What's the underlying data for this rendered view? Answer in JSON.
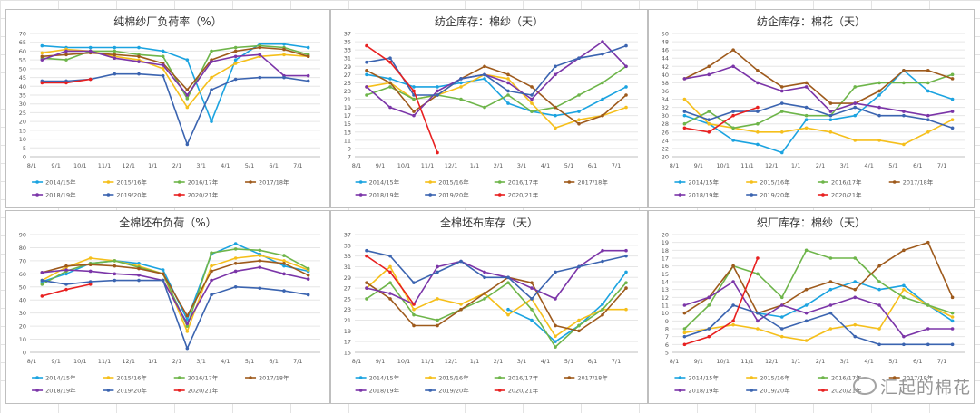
{
  "chart_data": [
    {
      "type": "line",
      "title": "纯棉纱厂负荷率（%）",
      "categories": [
        "8/1",
        "9/1",
        "10/1",
        "11/1",
        "12/1",
        "1/1",
        "2/1",
        "3/1",
        "4/1",
        "5/1",
        "6/1",
        "7/1"
      ],
      "yticks": [
        0,
        5,
        10,
        15,
        20,
        25,
        30,
        35,
        40,
        45,
        50,
        55,
        60,
        65,
        70
      ],
      "ylim": [
        0,
        70
      ],
      "legend_rows": [
        [
          "2014/15年",
          "2015/16年",
          "2016/17年",
          "2017/18年"
        ],
        [
          "2018/19年",
          "2019/20年",
          "2020/21年"
        ]
      ],
      "series": [
        {
          "name": "2014/15年",
          "color": "#1ba3e0",
          "values": [
            63,
            62,
            62,
            62,
            62,
            60,
            55,
            20,
            55,
            64,
            64,
            62
          ]
        },
        {
          "name": "2015/16年",
          "color": "#f5bf1b",
          "values": [
            59,
            61,
            60,
            57,
            55,
            50,
            28,
            45,
            53,
            57,
            58,
            57
          ]
        },
        {
          "name": "2016/17年",
          "color": "#6eb54a",
          "values": [
            56,
            55,
            60,
            60,
            58,
            57,
            33,
            60,
            62,
            63,
            62,
            58
          ]
        },
        {
          "name": "2017/18年",
          "color": "#9e5a1c",
          "values": [
            57,
            58,
            59,
            58,
            57,
            53,
            38,
            55,
            60,
            62,
            61,
            57
          ]
        },
        {
          "name": "2018/19年",
          "color": "#7b35a8",
          "values": [
            55,
            60,
            60,
            56,
            54,
            52,
            35,
            54,
            57,
            58,
            46,
            46
          ]
        },
        {
          "name": "2019/20年",
          "color": "#3b64b0",
          "values": [
            43,
            43,
            44,
            47,
            47,
            46,
            7,
            38,
            44,
            45,
            45,
            43
          ]
        },
        {
          "name": "2020/21年",
          "color": "#e82020",
          "values": [
            42,
            42,
            44,
            null,
            null,
            null,
            null,
            null,
            null,
            null,
            null,
            null
          ]
        }
      ]
    },
    {
      "type": "line",
      "title": "纺企库存：棉纱（天）",
      "categories": [
        "8/1",
        "9/1",
        "10/1",
        "11/1",
        "12/1",
        "1/1",
        "2/1",
        "3/1",
        "4/1",
        "5/1",
        "6/1",
        "7/1"
      ],
      "yticks": [
        7,
        9,
        11,
        13,
        15,
        17,
        19,
        21,
        23,
        25,
        27,
        29,
        31,
        33,
        35,
        37
      ],
      "ylim": [
        7,
        37
      ],
      "legend_rows": [
        [
          "2014/15年",
          "2015/16年",
          "2016/17年",
          "2017/18年"
        ],
        [
          "2018/19年",
          "2019/20年",
          "2020/21年"
        ]
      ],
      "series": [
        {
          "name": "2014/15年",
          "color": "#1ba3e0",
          "values": [
            27,
            26,
            24,
            24,
            25,
            26,
            20,
            18,
            17,
            18,
            21,
            24
          ]
        },
        {
          "name": "2015/16年",
          "color": "#f5bf1b",
          "values": [
            24,
            25,
            21,
            22,
            24,
            27,
            26,
            20,
            14,
            16,
            17,
            19
          ]
        },
        {
          "name": "2016/17年",
          "color": "#6eb54a",
          "values": [
            22,
            24,
            21,
            22,
            21,
            19,
            22,
            18,
            19,
            22,
            25,
            29
          ]
        },
        {
          "name": "2017/18年",
          "color": "#9e5a1c",
          "values": [
            28,
            25,
            18,
            22,
            26,
            29,
            27,
            24,
            19,
            15,
            17,
            22
          ]
        },
        {
          "name": "2018/19年",
          "color": "#7b35a8",
          "values": [
            24,
            19,
            17,
            23,
            26,
            27,
            25,
            21,
            27,
            31,
            35,
            29
          ]
        },
        {
          "name": "2019/20年",
          "color": "#3b64b0",
          "values": [
            30,
            31,
            22,
            22,
            26,
            27,
            23,
            22,
            29,
            31,
            32,
            34
          ]
        },
        {
          "name": "2020/21年",
          "color": "#e82020",
          "values": [
            34,
            30,
            23,
            8,
            null,
            null,
            null,
            null,
            null,
            null,
            null,
            null
          ]
        }
      ]
    },
    {
      "type": "line",
      "title": "纺企库存：棉花（天）",
      "categories": [
        "8/1",
        "9/1",
        "10/1",
        "11/1",
        "12/1",
        "1/1",
        "2/1",
        "3/1",
        "4/1",
        "5/1",
        "6/1",
        "7/1"
      ],
      "yticks": [
        20,
        22,
        24,
        26,
        28,
        30,
        32,
        34,
        36,
        38,
        40,
        42,
        44,
        46,
        48,
        50
      ],
      "ylim": [
        20,
        50
      ],
      "legend_rows": [
        [
          "2014/15年",
          "2015/16年",
          "2016/17年",
          "2017/18年"
        ],
        [
          "2018/19年",
          "2019/20年",
          "2020/21年"
        ]
      ],
      "series": [
        {
          "name": "2014/15年",
          "color": "#1ba3e0",
          "values": [
            30,
            28,
            24,
            23,
            21,
            29,
            29,
            30,
            35,
            41,
            36,
            34
          ]
        },
        {
          "name": "2015/16年",
          "color": "#f5bf1b",
          "values": [
            34,
            28,
            27,
            26,
            26,
            27,
            26,
            24,
            24,
            23,
            26,
            29
          ]
        },
        {
          "name": "2016/17年",
          "color": "#6eb54a",
          "values": [
            28,
            31,
            27,
            28,
            31,
            30,
            30,
            37,
            38,
            38,
            38,
            40
          ]
        },
        {
          "name": "2017/18年",
          "color": "#9e5a1c",
          "values": [
            39,
            42,
            46,
            41,
            37,
            38,
            33,
            33,
            36,
            41,
            41,
            39
          ]
        },
        {
          "name": "2018/19年",
          "color": "#7b35a8",
          "values": [
            39,
            40,
            42,
            38,
            36,
            37,
            31,
            33,
            32,
            31,
            30,
            31
          ]
        },
        {
          "name": "2019/20年",
          "color": "#3b64b0",
          "values": [
            31,
            29,
            31,
            31,
            33,
            32,
            30,
            32,
            30,
            30,
            29,
            27
          ]
        },
        {
          "name": "2020/21年",
          "color": "#e82020",
          "values": [
            27,
            26,
            30,
            32,
            null,
            null,
            null,
            null,
            null,
            null,
            null,
            null
          ]
        }
      ]
    },
    {
      "type": "line",
      "title": "全棉坯布负荷（%）",
      "categories": [
        "8/1",
        "9/1",
        "10/1",
        "11/1",
        "12/1",
        "1/1",
        "2/1",
        "3/1",
        "4/1",
        "5/1",
        "6/1",
        "7/1"
      ],
      "yticks": [
        0,
        10,
        20,
        30,
        40,
        50,
        60,
        70,
        80,
        90
      ],
      "ylim": [
        0,
        90
      ],
      "legend_rows": [
        [
          "2014/15年",
          "2015/16年",
          "2016/17年",
          "2017/18年"
        ],
        [
          "2018/19年",
          "2019/20年",
          "2020/21年"
        ]
      ],
      "series": [
        {
          "name": "2014/15年",
          "color": "#1ba3e0",
          "values": [
            54,
            60,
            68,
            70,
            68,
            63,
            25,
            75,
            83,
            75,
            66,
            62
          ]
        },
        {
          "name": "2015/16年",
          "color": "#f5bf1b",
          "values": [
            55,
            65,
            72,
            70,
            66,
            60,
            16,
            66,
            72,
            74,
            70,
            63
          ]
        },
        {
          "name": "2016/17年",
          "color": "#6eb54a",
          "values": [
            52,
            62,
            68,
            70,
            65,
            60,
            20,
            76,
            79,
            78,
            74,
            64
          ]
        },
        {
          "name": "2017/18年",
          "color": "#9e5a1c",
          "values": [
            61,
            66,
            67,
            66,
            64,
            60,
            28,
            62,
            68,
            70,
            68,
            59
          ]
        },
        {
          "name": "2018/19年",
          "color": "#7b35a8",
          "values": [
            61,
            63,
            62,
            60,
            59,
            55,
            22,
            55,
            62,
            65,
            60,
            56
          ]
        },
        {
          "name": "2019/20年",
          "color": "#3b64b0",
          "values": [
            55,
            52,
            54,
            55,
            55,
            55,
            3,
            44,
            50,
            49,
            47,
            44
          ]
        },
        {
          "name": "2020/21年",
          "color": "#e82020",
          "values": [
            43,
            48,
            52,
            null,
            null,
            null,
            null,
            null,
            null,
            null,
            null,
            null
          ]
        }
      ]
    },
    {
      "type": "line",
      "title": "全棉坯布库存（天）",
      "categories": [
        "8/1",
        "9/1",
        "10/1",
        "11/1",
        "12/1",
        "1/1",
        "2/1",
        "3/1",
        "4/1",
        "5/1",
        "6/1",
        "7/1"
      ],
      "yticks": [
        15,
        17,
        19,
        21,
        23,
        25,
        27,
        29,
        31,
        33,
        35,
        37
      ],
      "ylim": [
        15,
        37
      ],
      "legend_rows": [
        [
          "2014/15年",
          "2015/16年",
          "2016/17年",
          "2017/18年"
        ],
        [
          "2018/19年",
          "2019/20年",
          "2020/21年"
        ]
      ],
      "series": [
        {
          "name": "2014/15年",
          "color": "#1ba3e0",
          "values": [
            null,
            null,
            null,
            null,
            null,
            null,
            23,
            21,
            17,
            20,
            24,
            30
          ]
        },
        {
          "name": "2015/16年",
          "color": "#f5bf1b",
          "values": [
            27,
            31,
            23,
            25,
            24,
            26,
            22,
            25,
            18,
            21,
            23,
            23
          ]
        },
        {
          "name": "2016/17年",
          "color": "#6eb54a",
          "values": [
            25,
            28,
            22,
            21,
            23,
            25,
            28,
            23,
            16,
            20,
            23,
            28
          ]
        },
        {
          "name": "2017/18年",
          "color": "#9e5a1c",
          "values": [
            28,
            25,
            20,
            20,
            23,
            26,
            29,
            28,
            20,
            19,
            22,
            27
          ]
        },
        {
          "name": "2018/19年",
          "color": "#7b35a8",
          "values": [
            27,
            26,
            24,
            31,
            32,
            30,
            29,
            27,
            25,
            31,
            34,
            34
          ]
        },
        {
          "name": "2019/20年",
          "color": "#3b64b0",
          "values": [
            34,
            33,
            28,
            30,
            32,
            29,
            29,
            25,
            30,
            31,
            32,
            33
          ]
        },
        {
          "name": "2020/21年",
          "color": "#e82020",
          "values": [
            33,
            30,
            24,
            null,
            null,
            null,
            null,
            null,
            null,
            null,
            null,
            null
          ]
        }
      ]
    },
    {
      "type": "line",
      "title": "织厂库存：棉纱（天）",
      "categories": [
        "8/1",
        "9/1",
        "10/1",
        "11/1",
        "12/1",
        "1/1",
        "2/1",
        "3/1",
        "4/1",
        "5/1",
        "6/1",
        "7/1"
      ],
      "yticks": [
        5,
        6,
        7,
        8,
        9,
        10,
        11,
        12,
        13,
        14,
        15,
        16,
        17,
        18,
        19,
        20
      ],
      "ylim": [
        5,
        20
      ],
      "legend_rows": [
        [
          "2014/15年",
          "2015/16年",
          "2016/17年",
          "2017/18年"
        ],
        [
          "2018/19年",
          "2019/20年",
          "2020/21年"
        ]
      ],
      "series": [
        {
          "name": "2014/15年",
          "color": "#1ba3e0",
          "values": [
            null,
            null,
            null,
            10,
            9.5,
            11,
            13,
            14,
            13,
            13.5,
            11,
            9
          ]
        },
        {
          "name": "2015/16年",
          "color": "#f5bf1b",
          "values": [
            7.5,
            8,
            8.5,
            8,
            7,
            6.5,
            8,
            8.5,
            8,
            13,
            11,
            9.5
          ]
        },
        {
          "name": "2016/17年",
          "color": "#6eb54a",
          "values": [
            8,
            11,
            16,
            15,
            12,
            18,
            17,
            17,
            14,
            12,
            11,
            10
          ]
        },
        {
          "name": "2017/18年",
          "color": "#9e5a1c",
          "values": [
            10,
            12,
            16,
            10,
            11,
            13,
            14,
            13,
            16,
            18,
            19,
            12
          ]
        },
        {
          "name": "2018/19年",
          "color": "#7b35a8",
          "values": [
            11,
            12,
            14,
            9,
            11,
            10,
            11,
            12,
            11,
            7,
            8,
            8
          ]
        },
        {
          "name": "2019/20年",
          "color": "#3b64b0",
          "values": [
            7,
            8,
            11,
            10,
            8,
            9,
            10,
            7,
            6,
            6,
            6,
            6
          ]
        },
        {
          "name": "2020/21年",
          "color": "#e82020",
          "values": [
            6,
            7,
            9,
            17,
            null,
            null,
            null,
            null,
            null,
            null,
            null,
            null
          ]
        }
      ]
    }
  ],
  "watermark": {
    "text": "汇起的棉花",
    "icon": "wechat-icon"
  }
}
